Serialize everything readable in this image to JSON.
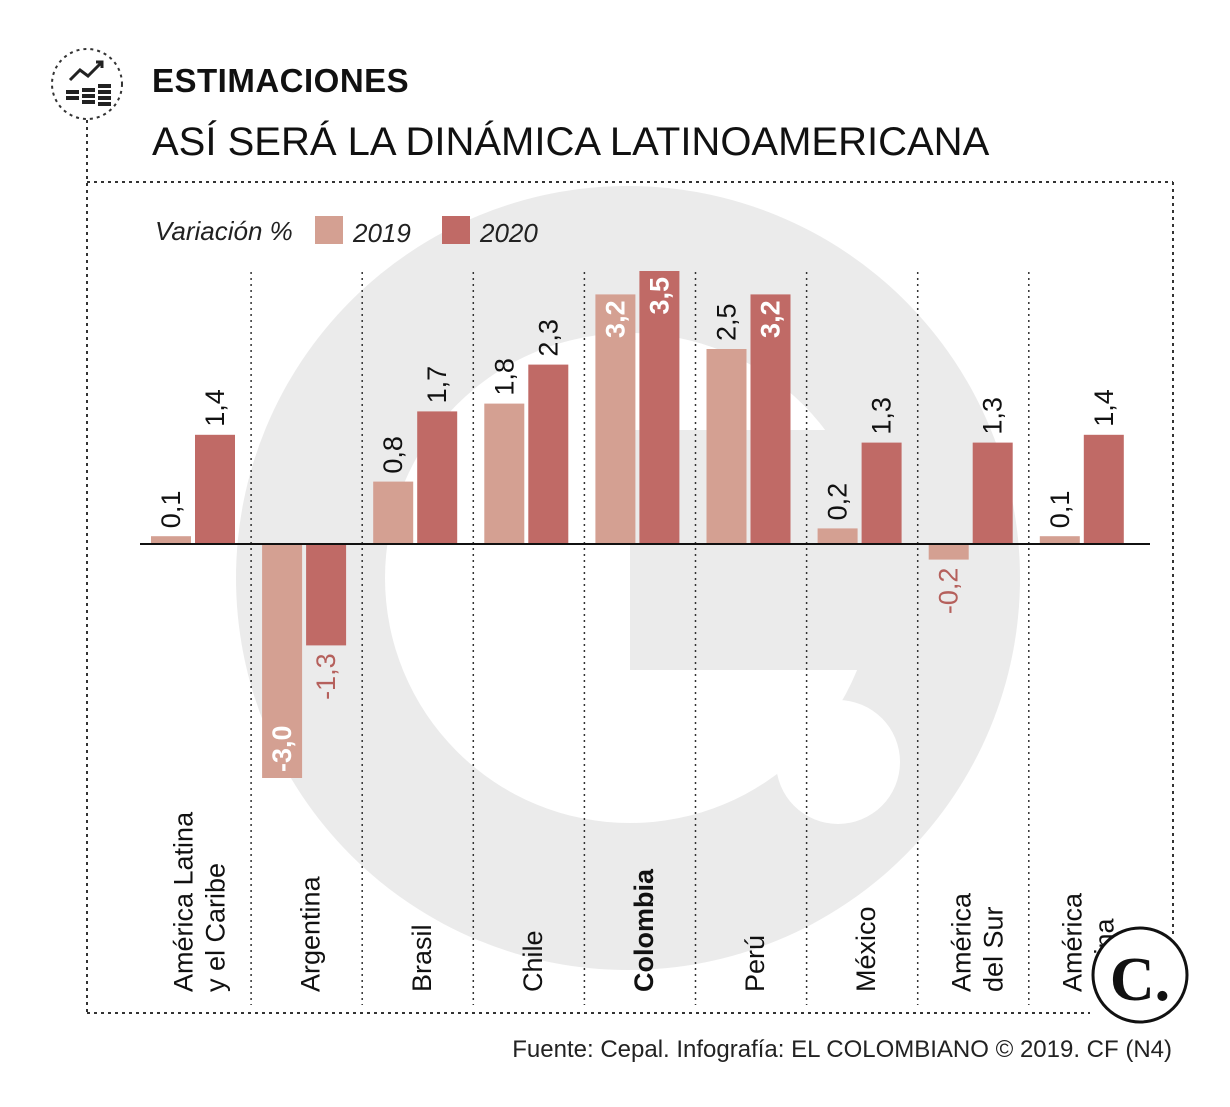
{
  "header": {
    "kicker": "ESTIMACIONES",
    "title": "ASÍ SERÁ LA DINÁMICA LATINOAMERICANA",
    "icon": "growth-chart-coins-icon"
  },
  "footer": {
    "source": "Fuente: Cepal. Infografía: EL COLOMBIANO © 2019. CF (N4)",
    "logo_letter": "C."
  },
  "colors": {
    "series_2019": "#d4a092",
    "series_2020": "#c06a66",
    "negative_label": "#b5605c",
    "watermark": "#ebebeb"
  },
  "chart_data": {
    "type": "bar",
    "ylabel": "Variación %",
    "legend_position": "top-left",
    "ylim": [
      -3.0,
      3.5
    ],
    "grid": false,
    "categories": [
      {
        "label": [
          "América Latina",
          "y el Caribe"
        ],
        "highlight": false
      },
      {
        "label": [
          "Argentina"
        ],
        "highlight": false
      },
      {
        "label": [
          "Brasil"
        ],
        "highlight": false
      },
      {
        "label": [
          "Chile"
        ],
        "highlight": false
      },
      {
        "label": [
          "Colombia"
        ],
        "highlight": true
      },
      {
        "label": [
          "Perú"
        ],
        "highlight": false
      },
      {
        "label": [
          "México"
        ],
        "highlight": false
      },
      {
        "label": [
          "América",
          "del Sur"
        ],
        "highlight": false
      },
      {
        "label": [
          "América",
          "Latina"
        ],
        "highlight": false
      }
    ],
    "series": [
      {
        "name": "2019",
        "values": [
          0.1,
          -3.0,
          0.8,
          1.8,
          3.2,
          2.5,
          0.2,
          -0.2,
          0.1
        ],
        "labels": [
          "0,1",
          "-3,0",
          "0,8",
          "1,8",
          "3,2",
          "2,5",
          "0,2",
          "-0,2",
          "0,1"
        ]
      },
      {
        "name": "2020",
        "values": [
          1.4,
          -1.3,
          1.7,
          2.3,
          3.5,
          3.2,
          1.3,
          1.3,
          1.4
        ],
        "labels": [
          "1,4",
          "-1,3",
          "1,7",
          "2,3",
          "3,5",
          "3,2",
          "1,3",
          "1,3",
          "1,4"
        ]
      }
    ]
  }
}
